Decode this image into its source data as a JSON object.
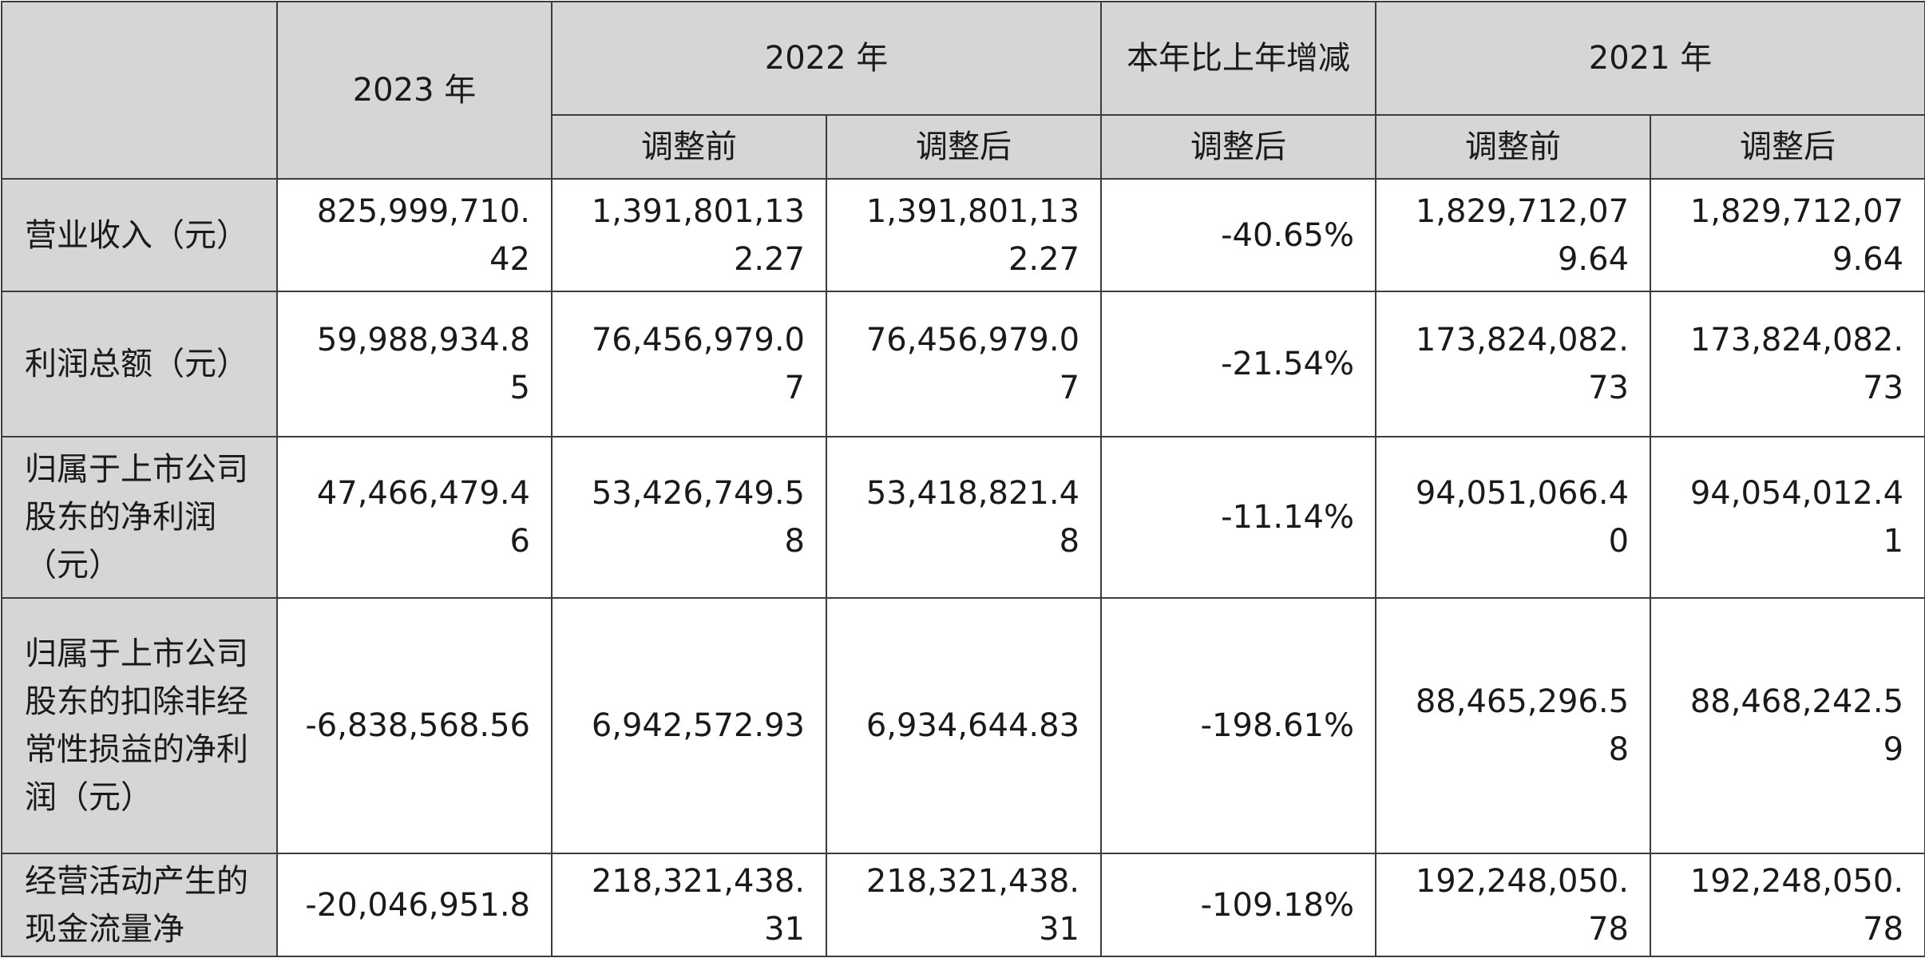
{
  "header": {
    "y2023": "2023 年",
    "y2022": "2022 年",
    "change": "本年比上年增减",
    "y2021": "2021 年",
    "before_a": "调整前",
    "after_a": "调整后",
    "after_change": "调整后",
    "before_b": "调整前",
    "after_b": "调整后"
  },
  "rows": [
    {
      "label": "营业收入（元）",
      "v2023": "825,999,710.42",
      "v2022_before": "1,391,801,132.27",
      "v2022_after": "1,391,801,132.27",
      "change": "-40.65%",
      "v2021_before": "1,829,712,079.64",
      "v2021_after": "1,829,712,079.64"
    },
    {
      "label": "利润总额（元）",
      "v2023": "59,988,934.85",
      "v2022_before": "76,456,979.07",
      "v2022_after": "76,456,979.07",
      "change": "-21.54%",
      "v2021_before": "173,824,082.73",
      "v2021_after": "173,824,082.73"
    },
    {
      "label": "归属于上市公司股东的净利润（元）",
      "v2023": "47,466,479.46",
      "v2022_before": "53,426,749.58",
      "v2022_after": "53,418,821.48",
      "change": "-11.14%",
      "v2021_before": "94,051,066.40",
      "v2021_after": "94,054,012.41"
    },
    {
      "label": "归属于上市公司股东的扣除非经常性损益的净利润（元）",
      "v2023": "-6,838,568.56",
      "v2022_before": "6,942,572.93",
      "v2022_after": "6,934,644.83",
      "change": "-198.61%",
      "v2021_before": "88,465,296.58",
      "v2021_after": "88,468,242.59"
    },
    {
      "label": "经营活动产生的现金流量净",
      "v2023": "-20,046,951.8",
      "v2022_before": "218,321,438.31",
      "v2022_after": "218,321,438.31",
      "change": "-109.18%",
      "v2021_before": "192,248,050.78",
      "v2021_after": "192,248,050.78"
    }
  ]
}
